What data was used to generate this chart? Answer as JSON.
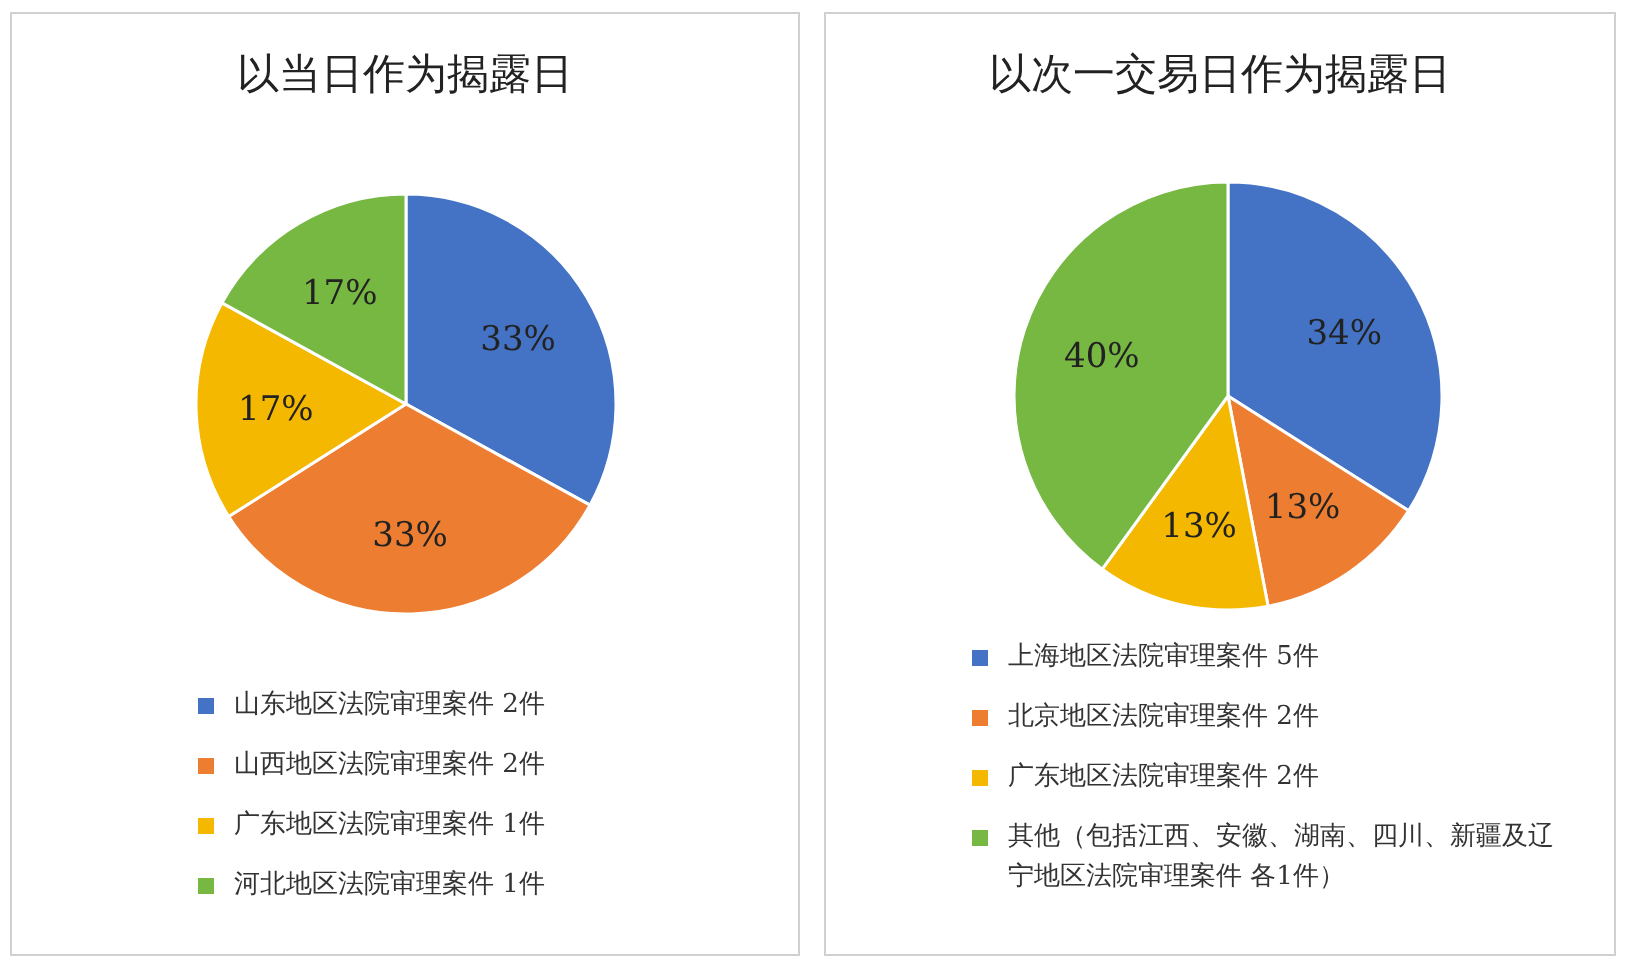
{
  "chart_data": [
    {
      "type": "pie",
      "title": "以当日作为揭露日",
      "categories": [
        "山东地区法院审理案件 2件",
        "山西地区法院审理案件 2件",
        "广东地区法院审理案件 1件",
        "河北地区法院审理案件 1件"
      ],
      "values": [
        33,
        33,
        17,
        17
      ],
      "value_labels": [
        "33%",
        "33%",
        "17%",
        "17%"
      ],
      "colors": [
        "#4472c4",
        "#ed7d31",
        "#f5b800",
        "#77b843"
      ],
      "legend": "bottom"
    },
    {
      "type": "pie",
      "title": "以次一交易日作为揭露日",
      "categories": [
        "上海地区法院审理案件 5件",
        "北京地区法院审理案件 2件",
        "广东地区法院审理案件 2件",
        "其他（包括江西、安徽、湖南、四川、新疆及辽宁地区法院审理案件 各1件）"
      ],
      "values": [
        34,
        13,
        13,
        40
      ],
      "value_labels": [
        "34%",
        "13%",
        "13%",
        "40%"
      ],
      "colors": [
        "#4472c4",
        "#ed7d31",
        "#f5b800",
        "#77b843"
      ],
      "legend": "bottom"
    }
  ]
}
